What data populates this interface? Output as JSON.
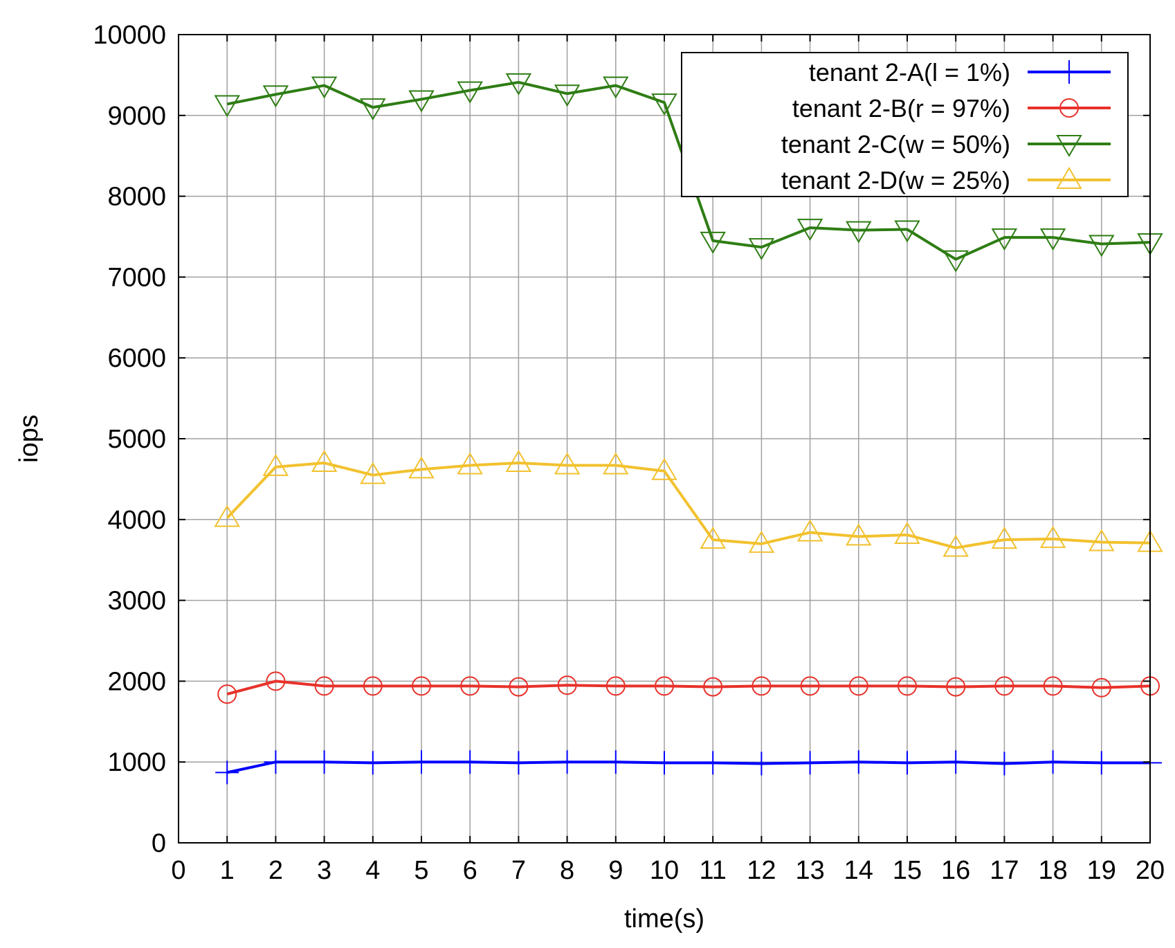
{
  "chart_data": {
    "type": "line",
    "title": "",
    "xlabel": "time(s)",
    "ylabel": "iops",
    "xlim": [
      0,
      20
    ],
    "ylim": [
      0,
      10000
    ],
    "xticks": [
      "0",
      "1",
      "2",
      "3",
      "4",
      "5",
      "6",
      "7",
      "8",
      "9",
      "10",
      "11",
      "12",
      "13",
      "14",
      "15",
      "16",
      "17",
      "18",
      "19",
      "20"
    ],
    "yticks": [
      "0",
      "1000",
      "2000",
      "3000",
      "4000",
      "5000",
      "6000",
      "7000",
      "8000",
      "9000",
      "10000"
    ],
    "grid": true,
    "legend_position": "top-right",
    "x": [
      1,
      2,
      3,
      4,
      5,
      6,
      7,
      8,
      9,
      10,
      11,
      12,
      13,
      14,
      15,
      16,
      17,
      18,
      19,
      20
    ],
    "series": [
      {
        "name": "tenant 2-A(l =   1%)",
        "color": "#0000ff",
        "marker": "plus",
        "values": [
          870,
          1000,
          1000,
          990,
          1000,
          1000,
          990,
          1000,
          1000,
          990,
          990,
          980,
          990,
          1000,
          990,
          1000,
          980,
          1000,
          990,
          990
        ]
      },
      {
        "name": "tenant 2-B(r = 97%)",
        "color": "#e8312a",
        "marker": "circle",
        "values": [
          1840,
          2000,
          1940,
          1940,
          1940,
          1940,
          1930,
          1950,
          1940,
          1940,
          1930,
          1940,
          1940,
          1940,
          1940,
          1930,
          1940,
          1940,
          1920,
          1940
        ]
      },
      {
        "name": "tenant 2-C(w = 50%)",
        "color": "#2e7d14",
        "marker": "triangle-down",
        "values": [
          9140,
          9260,
          9370,
          9100,
          9200,
          9310,
          9410,
          9270,
          9370,
          9160,
          7450,
          7370,
          7610,
          7580,
          7590,
          7220,
          7490,
          7490,
          7410,
          7430
        ]
      },
      {
        "name": "tenant 2-D(w = 25%)",
        "color": "#f2c12e",
        "marker": "triangle-up",
        "values": [
          4020,
          4650,
          4700,
          4550,
          4620,
          4670,
          4700,
          4670,
          4670,
          4600,
          3750,
          3700,
          3840,
          3790,
          3810,
          3650,
          3750,
          3760,
          3720,
          3710
        ]
      }
    ]
  }
}
